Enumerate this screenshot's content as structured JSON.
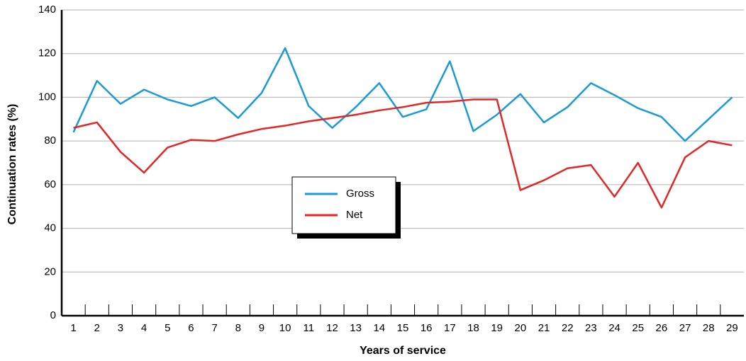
{
  "chart_data": {
    "type": "line",
    "x_label": "Years of service",
    "y_label": "Continuation rates (%)",
    "categories": [
      1,
      2,
      3,
      4,
      5,
      6,
      7,
      8,
      9,
      10,
      11,
      12,
      13,
      14,
      15,
      16,
      17,
      18,
      19,
      20,
      21,
      22,
      23,
      24,
      25,
      26,
      27,
      28,
      29
    ],
    "series": [
      {
        "name": "Gross",
        "color": "#1a9ad6",
        "values": [
          84,
          107.5,
          97,
          103.5,
          99,
          96,
          100,
          90.5,
          102,
          122.5,
          96,
          86,
          95.5,
          106.5,
          91,
          94.5,
          116.5,
          84.5,
          92,
          101.5,
          88.5,
          95.5,
          106.5,
          101,
          95,
          91,
          80,
          90,
          100
        ]
      },
      {
        "name": "Net",
        "color": "#e32626",
        "values": [
          86,
          88.5,
          75,
          65.5,
          77,
          80.5,
          80,
          83,
          85.5,
          87,
          89,
          90.5,
          92,
          94,
          95.5,
          97.5,
          98,
          99,
          99,
          57.5,
          62,
          67.5,
          69,
          54.5,
          70,
          49.5,
          72.5,
          80,
          78
        ]
      }
    ],
    "ylim": [
      0,
      140
    ],
    "yticks": [
      0,
      20,
      40,
      60,
      80,
      100,
      120,
      140
    ],
    "grid": true,
    "legend": "center"
  }
}
